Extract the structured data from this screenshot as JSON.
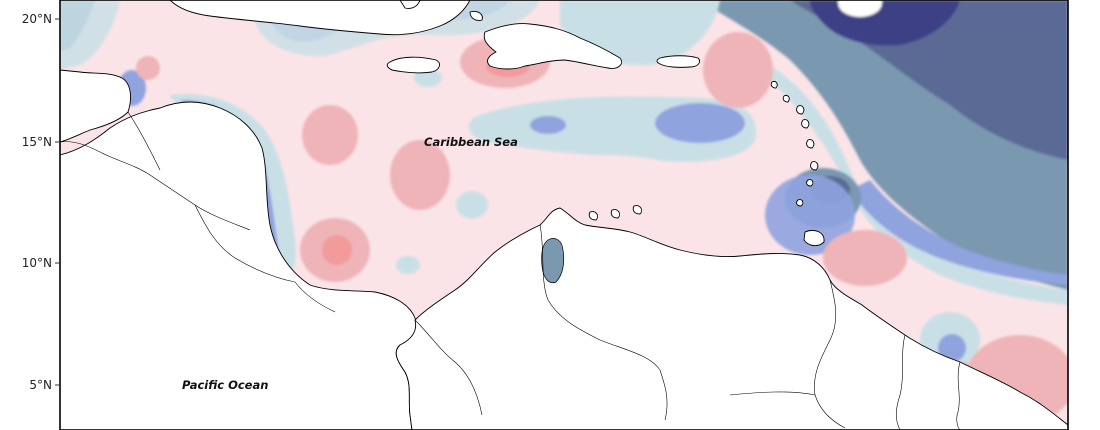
{
  "map": {
    "y_axis_ticks": [
      "20°N",
      "15°N",
      "10°N",
      "5°N"
    ],
    "labels": {
      "caribbean_sea": "Caribbean Sea",
      "pacific_ocean": "Pacific Ocean"
    },
    "colors": {
      "background": "#ffffff",
      "land_fill": "#ffffff",
      "coastline": "#000000",
      "anomaly_neg_1": "#c9dfe6",
      "anomaly_neg_2": "#8fa3df",
      "anomaly_neg_3": "#7a98b0",
      "anomaly_neg_4": "#5a6a95",
      "anomaly_neg_5": "#3c3f85",
      "anomaly_pos_1": "#fbe4e7",
      "anomaly_pos_2": "#efb4b8",
      "anomaly_pos_3": "#f39a9b"
    }
  }
}
